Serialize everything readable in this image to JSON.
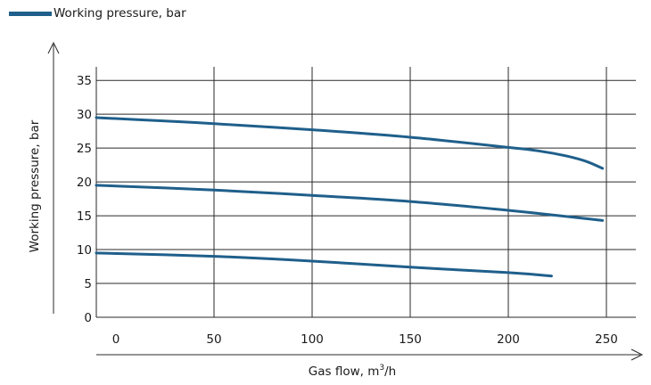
{
  "legend": {
    "label": "Working pressure, bar",
    "color": "#1f5f8b"
  },
  "chart_data": {
    "type": "line",
    "title": "",
    "xlabel": "Gas flow, m³/h",
    "ylabel": "Working pressure, bar",
    "xlim": [
      -10,
      265
    ],
    "ylim": [
      0,
      37
    ],
    "xticks": [
      0,
      50,
      100,
      150,
      200,
      250
    ],
    "yticks": [
      0,
      5,
      10,
      15,
      20,
      25,
      30,
      35
    ],
    "grid": true,
    "legend_position": "top-left",
    "series_color": "#1f5f8b",
    "series": [
      {
        "x": [
          -10,
          25,
          50,
          100,
          150,
          200,
          215,
          230,
          240,
          248
        ],
        "y": [
          29.5,
          29.0,
          28.6,
          27.7,
          26.6,
          25.1,
          24.6,
          23.8,
          23.0,
          22.0
        ]
      },
      {
        "x": [
          -10,
          50,
          100,
          150,
          200,
          248
        ],
        "y": [
          19.5,
          18.8,
          18.0,
          17.1,
          15.8,
          14.3
        ]
      },
      {
        "x": [
          -10,
          50,
          100,
          150,
          200,
          222
        ],
        "y": [
          9.5,
          9.0,
          8.3,
          7.4,
          6.6,
          6.1
        ]
      }
    ]
  }
}
